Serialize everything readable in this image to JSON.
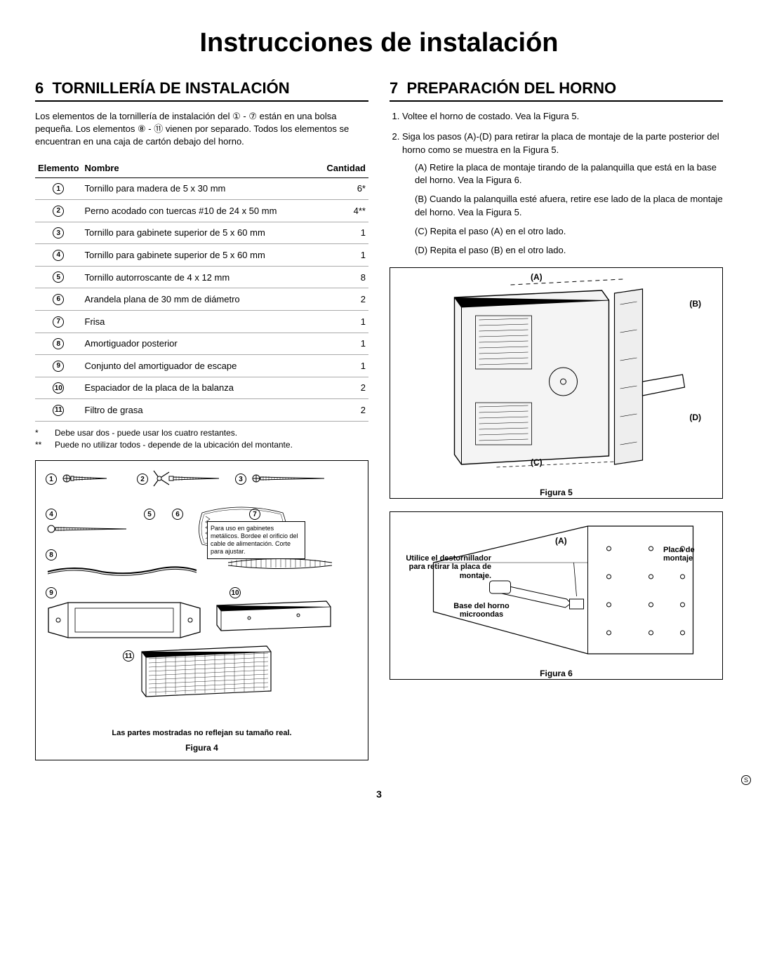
{
  "page": {
    "title": "Instrucciones de instalación",
    "number": "3",
    "corner_mark": "S"
  },
  "left": {
    "heading_num": "6",
    "heading": "TORNILLERÍA DE INSTALACIÓN",
    "intro": "Los elementos de la tornillería de instalación del ① - ⑦ están en una bolsa pequeña. Los elementos ⑧ - ⑪ vienen por separado. Todos los elementos se encuentran en una caja de cartón debajo del horno.",
    "table": {
      "headers": [
        "Elemento",
        "Nombre",
        "Cantidad"
      ],
      "rows": [
        {
          "n": "1",
          "name": "Tornillo para madera de 5 x 30 mm",
          "qty": "6*"
        },
        {
          "n": "2",
          "name": "Perno acodado con tuercas #10 de 24 x 50 mm",
          "qty": "4**"
        },
        {
          "n": "3",
          "name": "Tornillo para gabinete superior de 5 x 60 mm",
          "qty": "1"
        },
        {
          "n": "4",
          "name": "Tornillo para gabinete superior de 5 x 60 mm",
          "qty": "1"
        },
        {
          "n": "5",
          "name": "Tornillo autorroscante de 4 x 12 mm",
          "qty": "8"
        },
        {
          "n": "6",
          "name": "Arandela plana de 30 mm de diámetro",
          "qty": "2"
        },
        {
          "n": "7",
          "name": "Frisa",
          "qty": "1"
        },
        {
          "n": "8",
          "name": "Amortiguador posterior",
          "qty": "1"
        },
        {
          "n": "9",
          "name": "Conjunto del amortiguador de escape",
          "qty": "1"
        },
        {
          "n": "10",
          "name": "Espaciador de la placa de la balanza",
          "qty": "2"
        },
        {
          "n": "11",
          "name": "Filtro de grasa",
          "qty": "2"
        }
      ]
    },
    "footnotes": [
      {
        "mark": "*",
        "text": "Debe usar dos - puede usar los cuatro restantes."
      },
      {
        "mark": "**",
        "text": "Puede no utilizar todos - depende de la ubicación del montante."
      }
    ],
    "fig4": {
      "callout": "Para uso en gabinetes metálicos. Bordee el orificio del cable de alimentación. Corte para ajustar.",
      "note": "Las partes mostradas no reflejan su tamaño real.",
      "caption": "Figura 4"
    }
  },
  "right": {
    "heading_num": "7",
    "heading": "PREPARACIÓN DEL HORNO",
    "steps": [
      "Voltee el horno de costado. Vea la Figura 5.",
      "Siga los pasos (A)-(D) para retirar la placa de montaje de la parte posterior del horno como se muestra en la Figura 5."
    ],
    "substeps": [
      "(A) Retire la placa de montaje tirando de la palanquilla que está en la base del horno. Vea la Figura 6.",
      "(B) Cuando la palanquilla esté afuera, retire ese lado de la placa de montaje del horno. Vea la Figura 5.",
      "(C) Repita el paso (A) en el otro lado.",
      "(D) Repita el paso (B) en el otro lado."
    ],
    "fig5": {
      "labels": {
        "A": "(A)",
        "B": "(B)",
        "C": "(C)",
        "D": "(D)"
      },
      "caption": "Figura 5"
    },
    "fig6": {
      "l1": "Utilice el destornillador para retirar la placa de montaje.",
      "l2": "Base del horno microondas",
      "l3": "Placa de montaje",
      "A": "(A)",
      "caption": "Figura 6"
    }
  }
}
